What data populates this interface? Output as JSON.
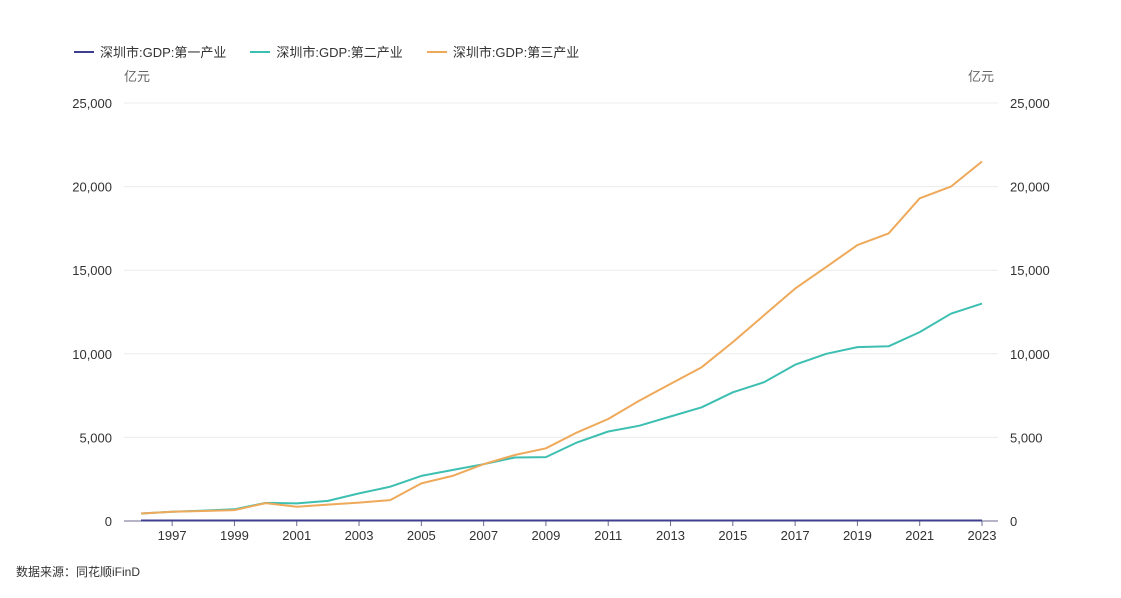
{
  "chart_data": {
    "type": "line",
    "y_unit_left": "亿元",
    "y_unit_right": "亿元",
    "x": [
      1996,
      1997,
      1998,
      1999,
      2000,
      2001,
      2002,
      2003,
      2004,
      2005,
      2006,
      2007,
      2008,
      2009,
      2010,
      2011,
      2012,
      2013,
      2014,
      2015,
      2016,
      2017,
      2018,
      2019,
      2020,
      2021,
      2022,
      2023
    ],
    "x_tick_labels": [
      "1997",
      "1999",
      "2001",
      "2003",
      "2005",
      "2007",
      "2009",
      "2011",
      "2013",
      "2015",
      "2017",
      "2019",
      "2021",
      "2023"
    ],
    "y_tick_labels": [
      "0",
      "5,000",
      "10,000",
      "15,000",
      "20,000",
      "25,000"
    ],
    "ylim": [
      0,
      25000
    ],
    "grid": true,
    "legend_position": "top-left",
    "series": [
      {
        "name": "深圳市:GDP:第一产业",
        "color": "#3f3f8f",
        "values": [
          30,
          30,
          30,
          30,
          30,
          30,
          30,
          30,
          30,
          30,
          30,
          30,
          30,
          30,
          30,
          30,
          30,
          30,
          30,
          30,
          30,
          30,
          30,
          30,
          30,
          30,
          30,
          30
        ]
      },
      {
        "name": "深圳市:GDP:第二产业",
        "color": "#3dbfb1",
        "values": [
          450,
          550,
          620,
          700,
          1080,
          1050,
          1200,
          1650,
          2050,
          2700,
          3050,
          3400,
          3800,
          3820,
          4700,
          5350,
          5700,
          6250,
          6800,
          7700,
          8300,
          9350,
          10000,
          10400,
          10450,
          11300,
          12400,
          13000
        ]
      },
      {
        "name": "深圳市:GDP:第三产业",
        "color": "#eea95a",
        "values": [
          450,
          550,
          600,
          650,
          1070,
          850,
          980,
          1100,
          1250,
          2250,
          2700,
          3400,
          3950,
          4350,
          5300,
          6100,
          7200,
          8200,
          9200,
          10700,
          12300,
          13900,
          15200,
          16500,
          17200,
          19300,
          20000,
          21500
        ]
      }
    ]
  },
  "source": "数据来源：同花顺iFinD"
}
